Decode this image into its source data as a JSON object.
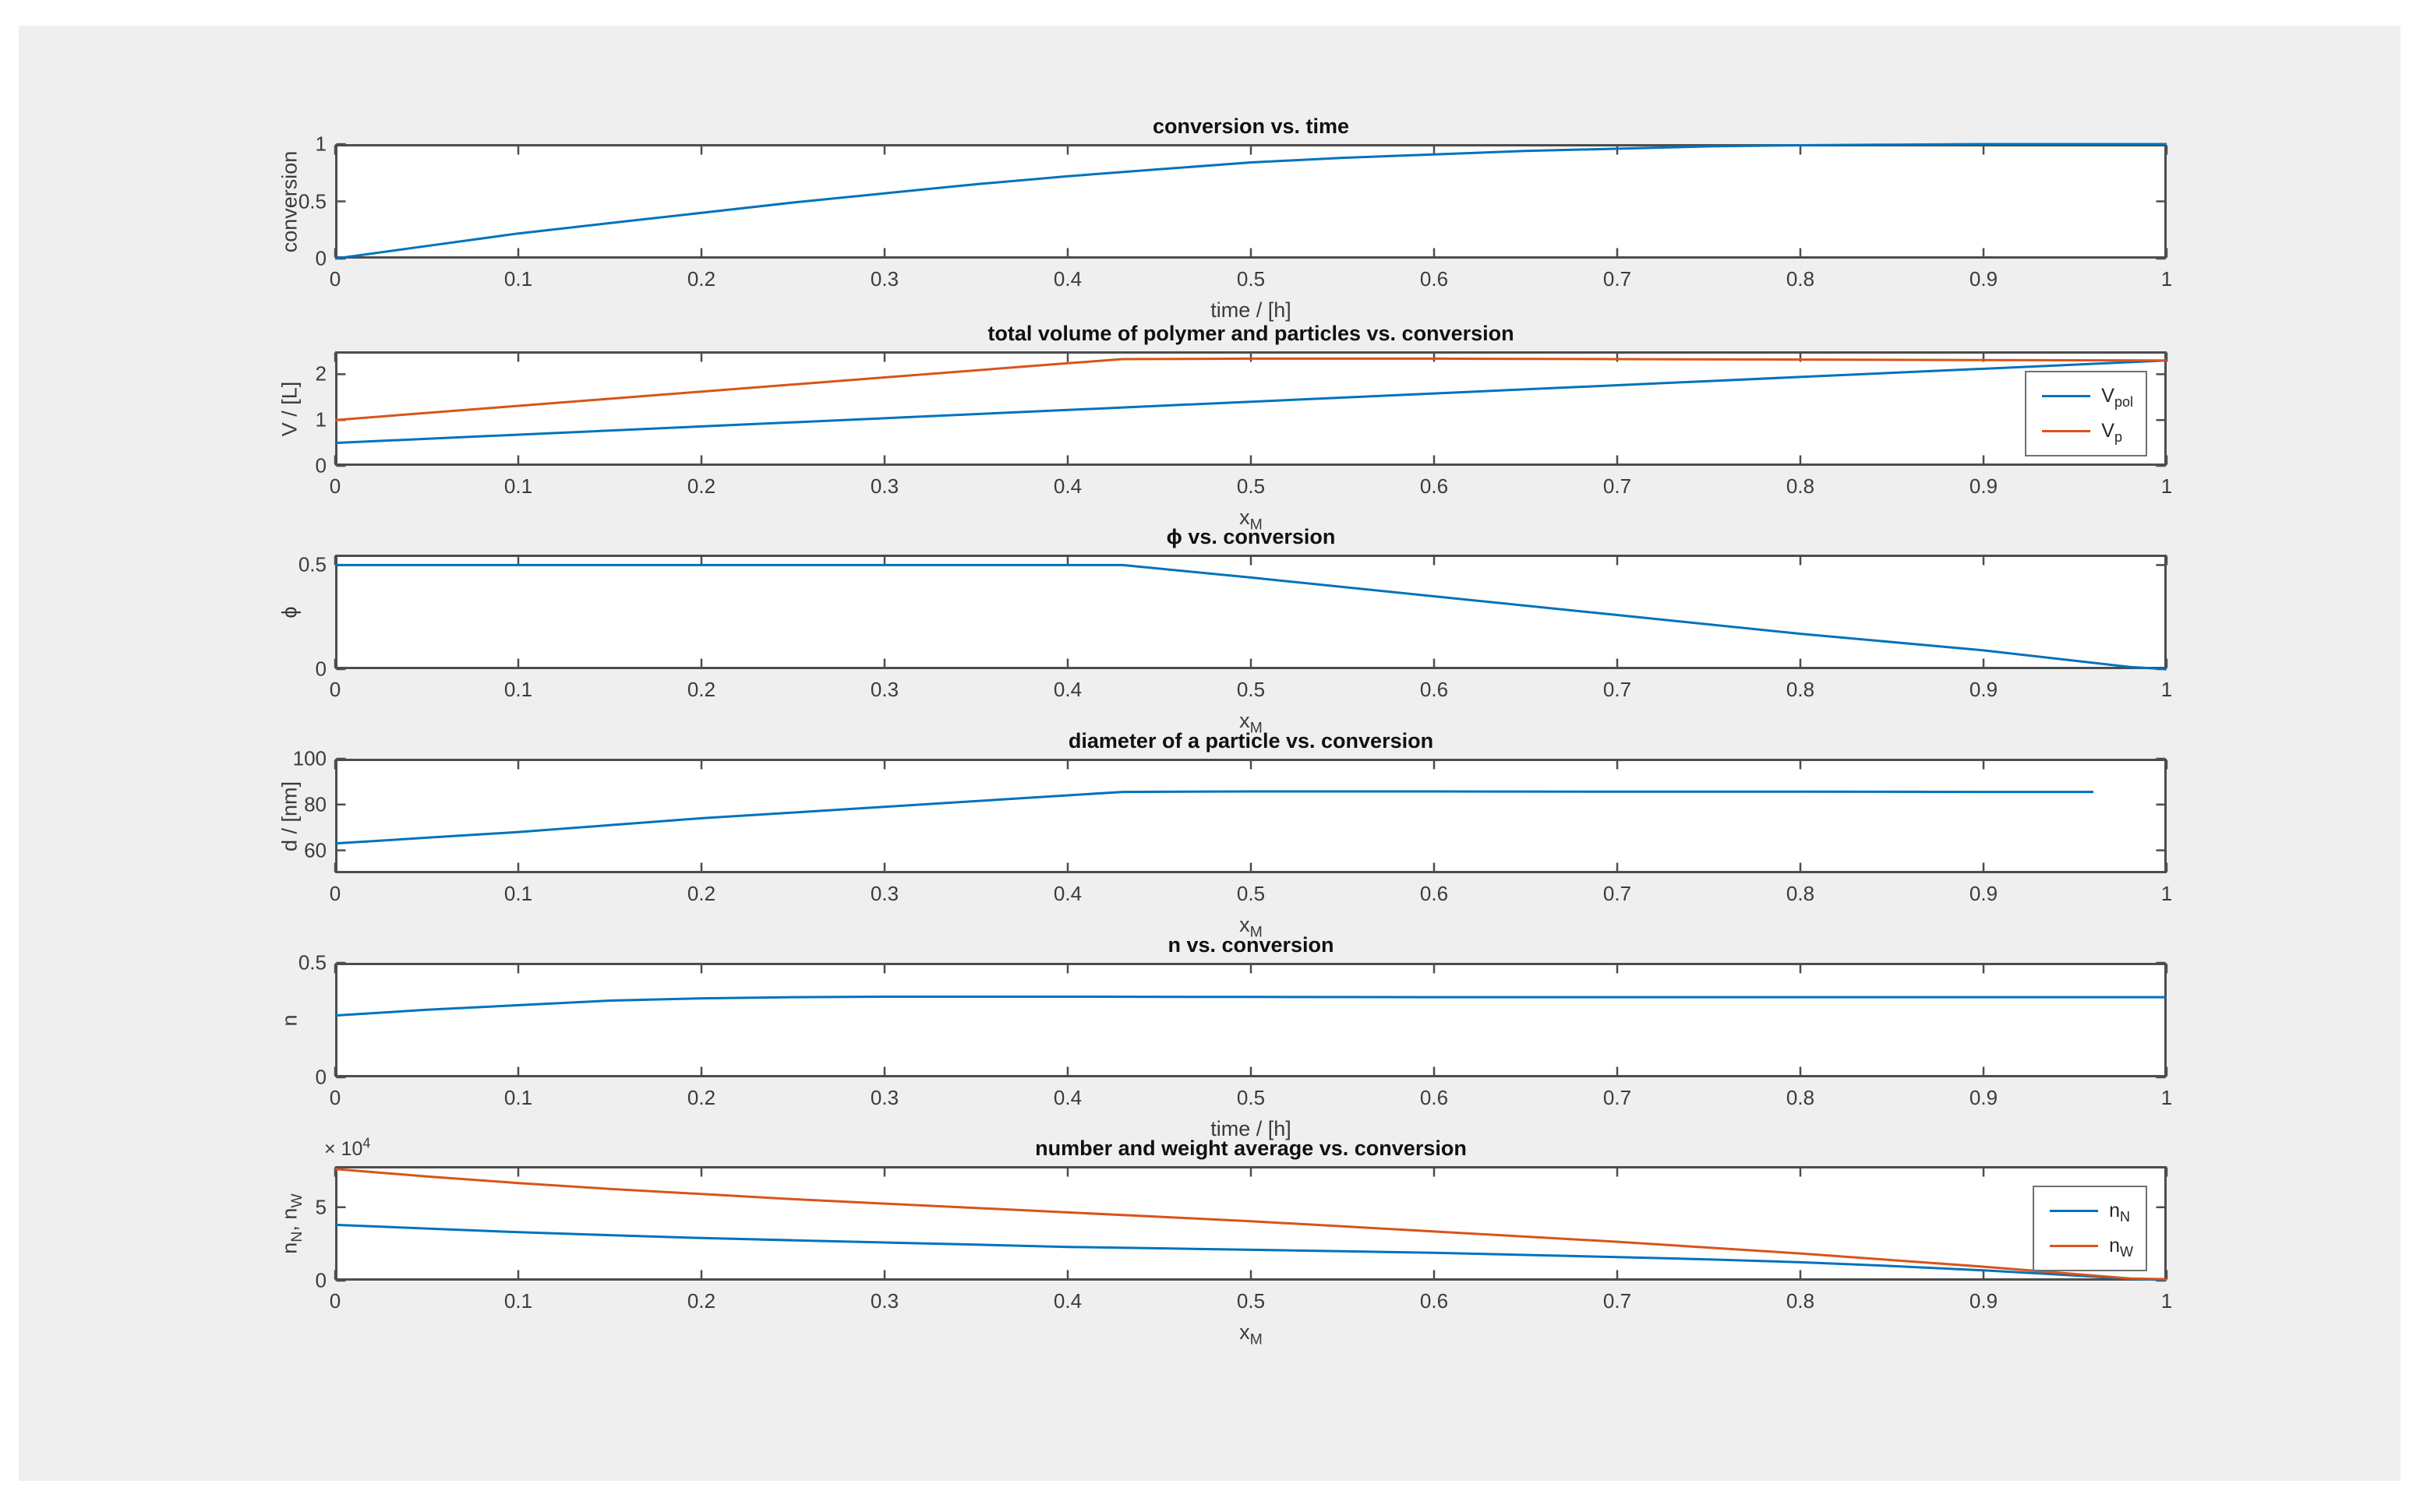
{
  "page": {
    "background": "#ffffff",
    "figure_background": "#efefef"
  },
  "colors": {
    "series_blue": "#0072BD",
    "series_orange": "#D95319",
    "axis_line": "#4d4d4d",
    "tick_text": "#3b3b3b",
    "title_text": "#111111"
  },
  "xticks": {
    "values": [
      0,
      0.1,
      0.2,
      0.3,
      0.4,
      0.5,
      0.6,
      0.7,
      0.8,
      0.9,
      1
    ],
    "labels": [
      "0",
      "0.1",
      "0.2",
      "0.3",
      "0.4",
      "0.5",
      "0.6",
      "0.7",
      "0.8",
      "0.9",
      "1"
    ]
  },
  "chart_data": [
    {
      "id": "conversion-vs-time",
      "type": "line",
      "title": "conversion vs. time",
      "xlabel": [
        [
          "time / [h]",
          false
        ]
      ],
      "ylabel": [
        [
          "conversion",
          false
        ]
      ],
      "xlim": [
        0,
        1
      ],
      "ylim": [
        0,
        1
      ],
      "yticks": {
        "values": [
          0,
          0.5,
          1
        ],
        "labels": [
          "0",
          "0.5",
          "1"
        ]
      },
      "y_multiplier": null,
      "legend": null,
      "series": [
        {
          "name": "conversion",
          "color": "series_blue",
          "points": [
            [
              0,
              0
            ],
            [
              0.05,
              0.11
            ],
            [
              0.1,
              0.22
            ],
            [
              0.15,
              0.31
            ],
            [
              0.2,
              0.4
            ],
            [
              0.25,
              0.49
            ],
            [
              0.3,
              0.57
            ],
            [
              0.35,
              0.65
            ],
            [
              0.4,
              0.72
            ],
            [
              0.45,
              0.78
            ],
            [
              0.5,
              0.84
            ],
            [
              0.55,
              0.88
            ],
            [
              0.6,
              0.91
            ],
            [
              0.65,
              0.94
            ],
            [
              0.7,
              0.96
            ],
            [
              0.75,
              0.98
            ],
            [
              0.8,
              0.99
            ],
            [
              0.85,
              0.995
            ],
            [
              0.9,
              1
            ],
            [
              0.95,
              1
            ],
            [
              1,
              1
            ]
          ]
        }
      ]
    },
    {
      "id": "total-volume-vs-conversion",
      "type": "line",
      "title": "total volume of polymer and particles vs. conversion",
      "xlabel": [
        [
          "x",
          false
        ],
        [
          "M",
          true
        ]
      ],
      "ylabel": [
        [
          "V / [L]",
          false
        ]
      ],
      "xlim": [
        0,
        1
      ],
      "ylim": [
        0,
        2.5
      ],
      "yticks": {
        "values": [
          0,
          1,
          2
        ],
        "labels": [
          "0",
          "1",
          "2"
        ]
      },
      "y_multiplier": null,
      "legend": [
        {
          "label": [
            [
              "V",
              false
            ],
            [
              "pol",
              true
            ]
          ],
          "color": "series_blue"
        },
        {
          "label": [
            [
              "V",
              false
            ],
            [
              "p",
              true
            ]
          ],
          "color": "series_orange"
        }
      ],
      "series": [
        {
          "name": "V_pol",
          "color": "series_blue",
          "points": [
            [
              0,
              0.5
            ],
            [
              0.2,
              0.86
            ],
            [
              0.4,
              1.22
            ],
            [
              0.6,
              1.58
            ],
            [
              0.8,
              1.94
            ],
            [
              1,
              2.3
            ]
          ]
        },
        {
          "name": "V_p",
          "color": "series_orange",
          "points": [
            [
              0,
              1.0
            ],
            [
              0.1,
              1.31
            ],
            [
              0.2,
              1.62
            ],
            [
              0.3,
              1.93
            ],
            [
              0.4,
              2.24
            ],
            [
              0.43,
              2.33
            ],
            [
              0.5,
              2.34
            ],
            [
              0.6,
              2.34
            ],
            [
              0.7,
              2.33
            ],
            [
              0.8,
              2.32
            ],
            [
              0.9,
              2.31
            ],
            [
              1,
              2.3
            ]
          ]
        }
      ]
    },
    {
      "id": "phi-vs-conversion",
      "type": "line",
      "title": "ϕ vs. conversion",
      "xlabel": [
        [
          "x",
          false
        ],
        [
          "M",
          true
        ]
      ],
      "ylabel": [
        [
          "ϕ",
          false
        ]
      ],
      "xlim": [
        0,
        1
      ],
      "ylim": [
        0,
        0.55
      ],
      "yticks": {
        "values": [
          0,
          0.5
        ],
        "labels": [
          "0",
          "0.5"
        ]
      },
      "y_multiplier": null,
      "legend": null,
      "series": [
        {
          "name": "phi",
          "color": "series_blue",
          "points": [
            [
              0,
              0.5
            ],
            [
              0.43,
              0.5
            ],
            [
              0.5,
              0.44
            ],
            [
              0.6,
              0.35
            ],
            [
              0.7,
              0.26
            ],
            [
              0.8,
              0.17
            ],
            [
              0.9,
              0.09
            ],
            [
              0.98,
              0.01
            ],
            [
              1,
              0
            ]
          ]
        }
      ]
    },
    {
      "id": "diameter-vs-conversion",
      "type": "line",
      "title": "diameter of a particle vs. conversion",
      "xlabel": [
        [
          "x",
          false
        ],
        [
          "M",
          true
        ]
      ],
      "ylabel": [
        [
          "d / [nm]",
          false
        ]
      ],
      "xlim": [
        0,
        1
      ],
      "ylim": [
        50,
        100
      ],
      "yticks": {
        "values": [
          60,
          80,
          100
        ],
        "labels": [
          "60",
          "80",
          "100"
        ]
      },
      "y_multiplier": null,
      "legend": null,
      "series": [
        {
          "name": "d",
          "color": "series_blue",
          "points": [
            [
              0,
              63
            ],
            [
              0.05,
              65.5
            ],
            [
              0.1,
              68
            ],
            [
              0.15,
              71
            ],
            [
              0.2,
              74
            ],
            [
              0.25,
              76.5
            ],
            [
              0.3,
              79
            ],
            [
              0.35,
              81.5
            ],
            [
              0.4,
              84
            ],
            [
              0.43,
              85.5
            ],
            [
              0.5,
              85.7
            ],
            [
              0.6,
              85.7
            ],
            [
              0.7,
              85.6
            ],
            [
              0.8,
              85.6
            ],
            [
              0.9,
              85.5
            ],
            [
              0.96,
              85.5
            ]
          ]
        }
      ]
    },
    {
      "id": "n-vs-conversion",
      "type": "line",
      "title": "n vs. conversion",
      "xlabel": [
        [
          "time / [h]",
          false
        ]
      ],
      "ylabel": [
        [
          "n",
          false
        ]
      ],
      "xlim": [
        0,
        1
      ],
      "ylim": [
        0,
        0.5
      ],
      "yticks": {
        "values": [
          0,
          0.5
        ],
        "labels": [
          "0",
          "0.5"
        ]
      },
      "y_multiplier": null,
      "legend": null,
      "series": [
        {
          "name": "n",
          "color": "series_blue",
          "points": [
            [
              0,
              0.27
            ],
            [
              0.05,
              0.295
            ],
            [
              0.1,
              0.315
            ],
            [
              0.15,
              0.335
            ],
            [
              0.2,
              0.345
            ],
            [
              0.25,
              0.35
            ],
            [
              0.3,
              0.352
            ],
            [
              0.4,
              0.352
            ],
            [
              0.5,
              0.351
            ],
            [
              0.6,
              0.35
            ],
            [
              0.7,
              0.35
            ],
            [
              0.8,
              0.35
            ],
            [
              0.9,
              0.35
            ],
            [
              1,
              0.35
            ]
          ]
        }
      ]
    },
    {
      "id": "number-weight-average-vs-conversion",
      "type": "line",
      "title": "number and weight average vs. conversion",
      "xlabel": [
        [
          "x",
          false
        ],
        [
          "M",
          true
        ]
      ],
      "ylabel": [
        [
          "n",
          false
        ],
        [
          "N",
          true
        ],
        [
          ", n",
          false
        ],
        [
          "W",
          true
        ]
      ],
      "xlim": [
        0,
        1
      ],
      "ylim": [
        0,
        7.8
      ],
      "yticks": {
        "values": [
          0,
          5
        ],
        "labels": [
          "0",
          "5"
        ]
      },
      "y_multiplier": {
        "base": "× 10",
        "exp": "4"
      },
      "legend": [
        {
          "label": [
            [
              "n",
              false
            ],
            [
              "N",
              true
            ]
          ],
          "color": "series_blue"
        },
        {
          "label": [
            [
              "n",
              false
            ],
            [
              "W",
              true
            ]
          ],
          "color": "series_orange"
        }
      ],
      "series": [
        {
          "name": "n_N",
          "color": "series_blue",
          "points": [
            [
              0,
              3.8
            ],
            [
              0.05,
              3.55
            ],
            [
              0.1,
              3.3
            ],
            [
              0.15,
              3.1
            ],
            [
              0.2,
              2.9
            ],
            [
              0.25,
              2.75
            ],
            [
              0.3,
              2.6
            ],
            [
              0.35,
              2.45
            ],
            [
              0.4,
              2.3
            ],
            [
              0.45,
              2.2
            ],
            [
              0.5,
              2.1
            ],
            [
              0.55,
              2.0
            ],
            [
              0.6,
              1.9
            ],
            [
              0.65,
              1.75
            ],
            [
              0.7,
              1.6
            ],
            [
              0.75,
              1.45
            ],
            [
              0.8,
              1.25
            ],
            [
              0.85,
              1.0
            ],
            [
              0.9,
              0.7
            ],
            [
              0.95,
              0.35
            ],
            [
              0.98,
              0.12
            ],
            [
              1,
              0.05
            ]
          ]
        },
        {
          "name": "n_W",
          "color": "series_orange",
          "points": [
            [
              0,
              7.6
            ],
            [
              0.05,
              7.1
            ],
            [
              0.1,
              6.65
            ],
            [
              0.15,
              6.25
            ],
            [
              0.2,
              5.9
            ],
            [
              0.25,
              5.55
            ],
            [
              0.3,
              5.25
            ],
            [
              0.35,
              4.95
            ],
            [
              0.4,
              4.65
            ],
            [
              0.45,
              4.35
            ],
            [
              0.5,
              4.05
            ],
            [
              0.55,
              3.7
            ],
            [
              0.6,
              3.35
            ],
            [
              0.65,
              3.0
            ],
            [
              0.7,
              2.65
            ],
            [
              0.75,
              2.25
            ],
            [
              0.8,
              1.85
            ],
            [
              0.85,
              1.4
            ],
            [
              0.9,
              0.95
            ],
            [
              0.95,
              0.45
            ],
            [
              0.98,
              0.15
            ],
            [
              1,
              0.1
            ]
          ]
        }
      ]
    }
  ]
}
